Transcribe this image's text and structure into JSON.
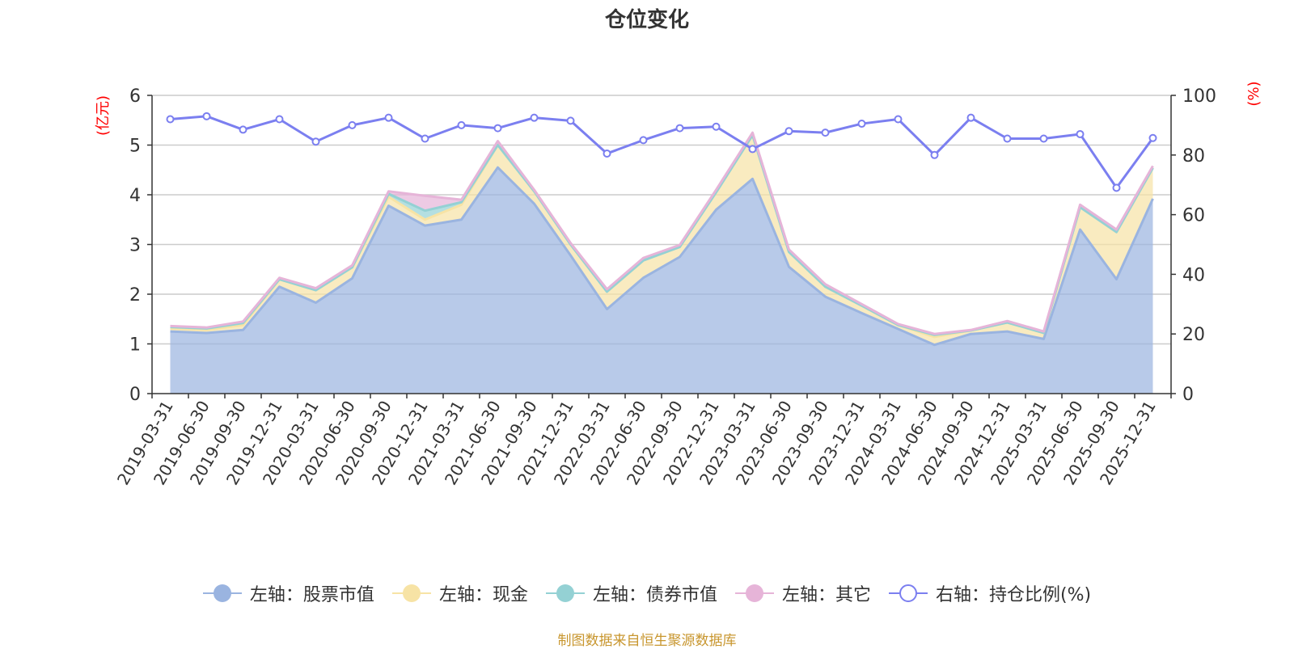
{
  "chart_data": {
    "type": "area",
    "title": "仓位变化",
    "left_axis_label": "(亿元)",
    "right_axis_label": "(%)",
    "ylim_left": [
      0,
      6
    ],
    "ylim_right": [
      0,
      100
    ],
    "y_ticks_left": [
      0,
      1,
      2,
      3,
      4,
      5,
      6
    ],
    "y_ticks_right": [
      0,
      20,
      40,
      60,
      80,
      100
    ],
    "categories": [
      "2019-03-31",
      "2019-06-30",
      "2019-09-30",
      "2019-12-31",
      "2020-03-31",
      "2020-06-30",
      "2020-09-30",
      "2020-12-31",
      "2021-03-31",
      "2021-06-30",
      "2021-09-30",
      "2021-12-31",
      "2022-03-31",
      "2022-06-30",
      "2022-09-30",
      "2022-12-31",
      "2023-03-31",
      "2023-06-30",
      "2023-09-30",
      "2023-12-31",
      "2024-03-31",
      "2024-06-30",
      "2024-09-30",
      "2024-12-31",
      "2025-03-31",
      "2025-06-30",
      "2025-09-30",
      "2025-12-31"
    ],
    "series": [
      {
        "name": "左轴：股票市值",
        "axis": "left",
        "stack": true,
        "color": "#9ab4e0",
        "values": [
          1.25,
          1.22,
          1.28,
          2.15,
          1.83,
          2.32,
          3.78,
          3.38,
          3.5,
          4.55,
          3.82,
          2.78,
          1.7,
          2.33,
          2.75,
          3.7,
          4.32,
          2.55,
          1.95,
          1.62,
          1.3,
          0.98,
          1.2,
          1.25,
          1.1,
          3.3,
          2.3,
          3.92
        ]
      },
      {
        "name": "左轴：现金",
        "axis": "left",
        "stack": true,
        "color": "#f7e3a5",
        "values": [
          0.06,
          0.06,
          0.1,
          0.15,
          0.25,
          0.22,
          0.18,
          0.12,
          0.3,
          0.45,
          0.25,
          0.22,
          0.35,
          0.35,
          0.2,
          0.35,
          0.88,
          0.3,
          0.2,
          0.15,
          0.08,
          0.16,
          0.07,
          0.18,
          0.12,
          0.45,
          0.95,
          0.62
        ]
      },
      {
        "name": "左轴：债券市值",
        "axis": "left",
        "stack": true,
        "color": "#94d1d4",
        "values": [
          0.03,
          0.03,
          0.04,
          0.0,
          0.0,
          0.0,
          0.06,
          0.18,
          0.05,
          0.0,
          0.0,
          0.0,
          0.0,
          0.0,
          0.0,
          0.0,
          0.0,
          0.0,
          0.0,
          0.0,
          0.0,
          0.04,
          0.0,
          0.0,
          0.0,
          0.0,
          0.0,
          0.0
        ]
      },
      {
        "name": "左轴：其它",
        "axis": "left",
        "stack": true,
        "color": "#e6b4d8",
        "values": [
          0.02,
          0.02,
          0.03,
          0.03,
          0.04,
          0.04,
          0.05,
          0.3,
          0.05,
          0.08,
          0.03,
          0.03,
          0.05,
          0.05,
          0.04,
          0.05,
          0.05,
          0.05,
          0.05,
          0.03,
          0.02,
          0.02,
          0.01,
          0.03,
          0.03,
          0.05,
          0.05,
          0.04
        ]
      },
      {
        "name": "右轴：持仓比例(%)",
        "axis": "right",
        "type": "line",
        "color": "#7b7ff0",
        "values": [
          92,
          93,
          88.5,
          92,
          84.5,
          90,
          92.5,
          85.5,
          90,
          89,
          92.5,
          91.5,
          80.5,
          85,
          89,
          89.5,
          82,
          88,
          87.5,
          90.5,
          92,
          80,
          92.5,
          85.5,
          85.5,
          87,
          69,
          85.7
        ]
      }
    ]
  },
  "source": "制图数据来自恒生聚源数据库"
}
